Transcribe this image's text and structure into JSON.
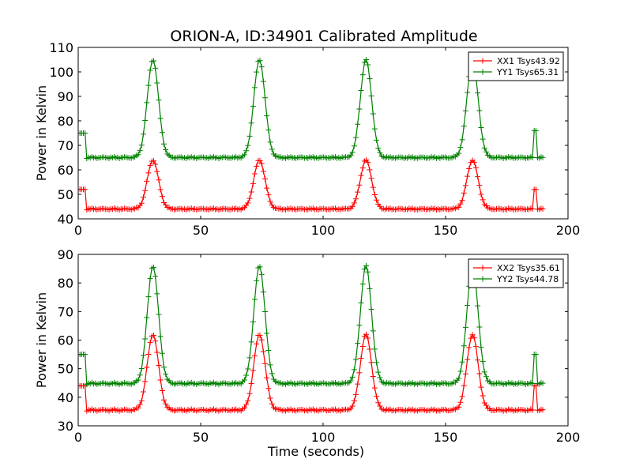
{
  "title": "ORION-A, ID:34901 Calibrated Amplitude",
  "chart_data": [
    {
      "type": "line",
      "title": "ORION-A, ID:34901 Calibrated Amplitude",
      "xlabel": "",
      "ylabel": "Power in Kelvin",
      "xlim": [
        0,
        200
      ],
      "ylim": [
        40,
        110
      ],
      "xticks": [
        0,
        50,
        100,
        150,
        200
      ],
      "yticks": [
        40,
        50,
        60,
        70,
        80,
        90,
        100,
        110
      ],
      "grid": false,
      "legend_position": "top-right",
      "marker": "plus",
      "peak_centers": [
        30.5,
        74,
        117.5,
        161
      ],
      "series": [
        {
          "name": "XX1 Tsys43.92",
          "color": "#ff0000",
          "baseline": 44,
          "peak": 64,
          "start_level": 52,
          "end_level": 52,
          "x": [
            0,
            2.5,
            3,
            186,
            187,
            190
          ],
          "y": [
            52,
            52,
            44,
            52,
            52,
            44
          ]
        },
        {
          "name": "YY1 Tsys65.31",
          "color": "#008000",
          "baseline": 65,
          "peak": 105,
          "start_level": 75,
          "end_level": 76,
          "x": [
            0,
            2.5,
            3,
            186,
            187,
            190
          ],
          "y": [
            75,
            75,
            65,
            76,
            76,
            65
          ]
        }
      ]
    },
    {
      "type": "line",
      "title": "",
      "xlabel": "Time (seconds)",
      "ylabel": "Power in Kelvin",
      "xlim": [
        0,
        200
      ],
      "ylim": [
        30,
        90
      ],
      "xticks": [
        0,
        50,
        100,
        150,
        200
      ],
      "yticks": [
        30,
        40,
        50,
        60,
        70,
        80,
        90
      ],
      "grid": false,
      "legend_position": "top-right",
      "marker": "plus",
      "peak_centers": [
        30.5,
        74,
        117.5,
        161
      ],
      "series": [
        {
          "name": "XX2 Tsys35.61",
          "color": "#ff0000",
          "baseline": 35.5,
          "peak": 62,
          "start_level": 44,
          "end_level": 44,
          "x": [
            0,
            2.5,
            3,
            186,
            187,
            190
          ],
          "y": [
            44,
            44,
            35.5,
            44,
            44,
            35.5
          ]
        },
        {
          "name": "YY2 Tsys44.78",
          "color": "#008000",
          "baseline": 44.8,
          "peak": 86,
          "start_level": 55,
          "end_level": 55,
          "x": [
            0,
            2.5,
            3,
            186,
            187,
            190
          ],
          "y": [
            55,
            55,
            44.8,
            55,
            55,
            44.8
          ]
        }
      ]
    }
  ]
}
